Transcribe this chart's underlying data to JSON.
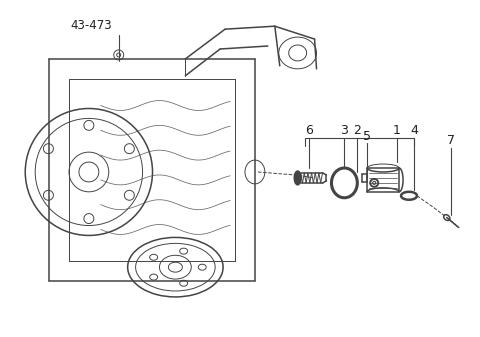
{
  "bg_color": "#ffffff",
  "line_color": "#444444",
  "label_color": "#222222",
  "part_label": "43-473",
  "part_numbers": [
    "1",
    "2",
    "3",
    "4",
    "5",
    "6",
    "7"
  ],
  "figsize": [
    4.8,
    3.37
  ],
  "dpi": 100
}
